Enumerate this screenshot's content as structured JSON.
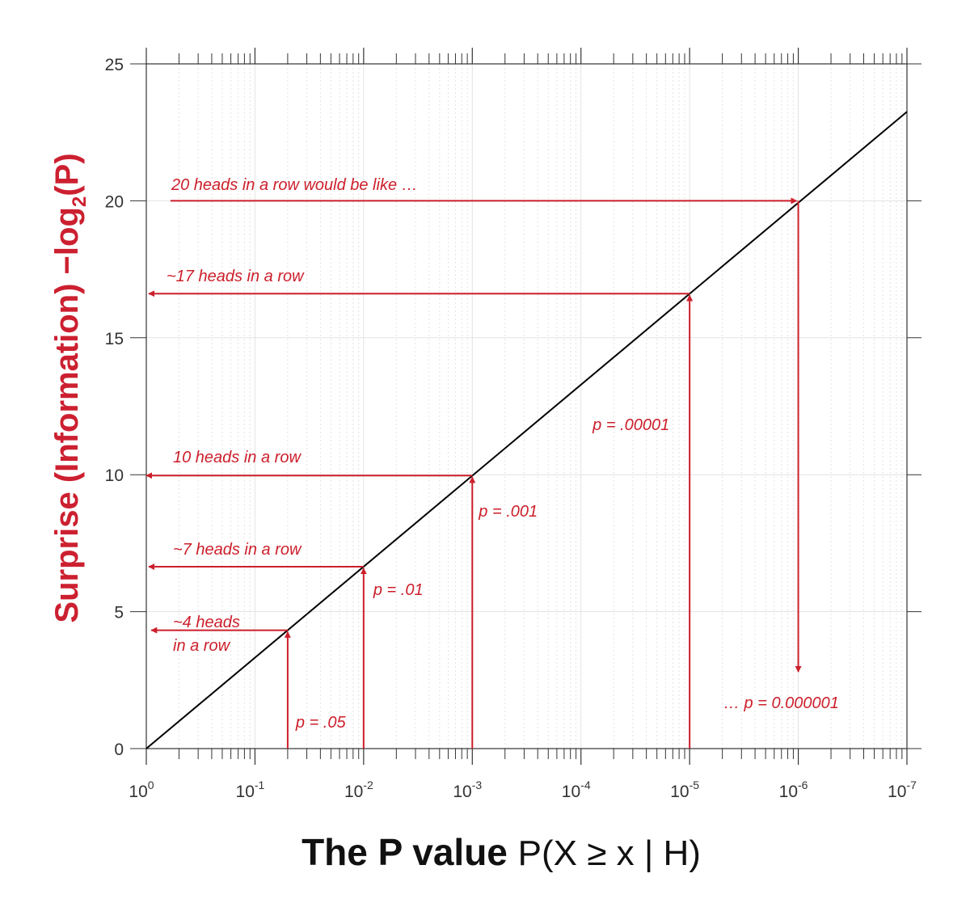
{
  "chart_data": {
    "type": "line",
    "x_scale": "log",
    "x_reversed": true,
    "xlim": [
      1,
      1e-07
    ],
    "ylim": [
      0,
      25
    ],
    "grid": true,
    "xlabel": {
      "bold": "The P value",
      "formula_parts": [
        "P(X ",
        "≥",
        " x | H)"
      ]
    },
    "ylabel": {
      "main": "Surprise (Information)  −log",
      "subscript": "2",
      "suffix": "(P)"
    },
    "x_ticks": [
      {
        "p": 1,
        "base": "10",
        "exp": "0"
      },
      {
        "p": 0.1,
        "base": "10",
        "exp": "-1"
      },
      {
        "p": 0.01,
        "base": "10",
        "exp": "-2"
      },
      {
        "p": 0.001,
        "base": "10",
        "exp": "-3"
      },
      {
        "p": 0.0001,
        "base": "10",
        "exp": "-4"
      },
      {
        "p": 1e-05,
        "base": "10",
        "exp": "-5"
      },
      {
        "p": 1e-06,
        "base": "10",
        "exp": "-6"
      },
      {
        "p": 1e-07,
        "base": "10",
        "exp": "-7"
      }
    ],
    "y_ticks": [
      0,
      5,
      10,
      15,
      20,
      25
    ],
    "series": [
      {
        "points": [
          [
            1,
            0
          ],
          [
            1e-07,
            23.25
          ]
        ],
        "color": "#000000"
      }
    ],
    "arrows": [
      {
        "kind": "up-left",
        "p": 0.05,
        "surprise": 4.32,
        "to_p": 0.9,
        "p_label": "p = .05",
        "heads_lines": [
          "~4 heads",
          "in a row"
        ]
      },
      {
        "kind": "up-left",
        "p": 0.01,
        "surprise": 6.64,
        "to_p": 0.95,
        "p_label": "p = .01",
        "heads_lines": [
          "~7 heads in a row"
        ]
      },
      {
        "kind": "up-left",
        "p": 0.001,
        "surprise": 9.97,
        "to_p": 1,
        "p_label": "p = .001",
        "heads_lines": [
          "10 heads in a row"
        ]
      },
      {
        "kind": "up-left",
        "p": 1e-05,
        "surprise": 16.61,
        "to_p": 0.95,
        "p_label": "p = .00001",
        "heads_lines": [
          "~17 heads in a row"
        ]
      },
      {
        "kind": "right-down",
        "p": 1e-06,
        "surprise": 20,
        "from_p": 0.6,
        "to_surprise": 2.8,
        "heads_lines": [
          "20 heads in a row would be like …"
        ],
        "p_label": "… p = 0.000001"
      }
    ],
    "colors": {
      "arrow": "#cc1f2b",
      "annotation": "#cc1f2b",
      "ylabel": "#cc2030",
      "line": "#000000",
      "grid": "#e3e3e3",
      "axis": "#333333"
    }
  }
}
